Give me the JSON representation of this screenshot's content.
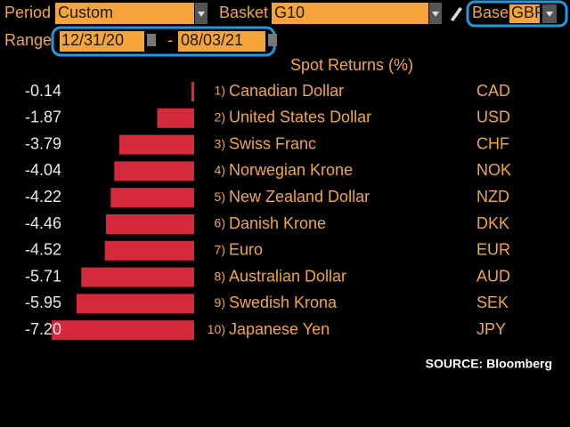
{
  "toolbar": {
    "period_label": "Period",
    "period_value": "Custom",
    "basket_label": "Basket",
    "basket_value": "G10",
    "base_label": "Base",
    "base_value": "GBP",
    "range_label": "Range",
    "range_start": "12/31/20",
    "range_sep": "-",
    "range_end": "08/03/21"
  },
  "chart_data": {
    "type": "bar",
    "title": "Spot Returns (%)",
    "orientation": "horizontal",
    "color": "#d42a3c",
    "ranks": [
      "1)",
      "2)",
      "3)",
      "4)",
      "5)",
      "6)",
      "7)",
      "8)",
      "9)",
      "10)"
    ],
    "categories": [
      "Canadian Dollar",
      "United States Dollar",
      "Swiss Franc",
      "Norwegian Krone",
      "New Zealand Dollar",
      "Danish Krone",
      "Euro",
      "Australian Dollar",
      "Swedish Krona",
      "Japanese Yen"
    ],
    "codes": [
      "CAD",
      "USD",
      "CHF",
      "NOK",
      "NZD",
      "DKK",
      "EUR",
      "AUD",
      "SEK",
      "JPY"
    ],
    "values": [
      -0.14,
      -1.87,
      -3.79,
      -4.04,
      -4.22,
      -4.46,
      -4.52,
      -5.71,
      -5.95,
      -7.2
    ],
    "value_labels": [
      "-0.14",
      "-1.87",
      "-3.79",
      "-4.04",
      "-4.22",
      "-4.46",
      "-4.52",
      "-5.71",
      "-5.95",
      "-7.20"
    ]
  },
  "source": "SOURCE: Bloomberg"
}
